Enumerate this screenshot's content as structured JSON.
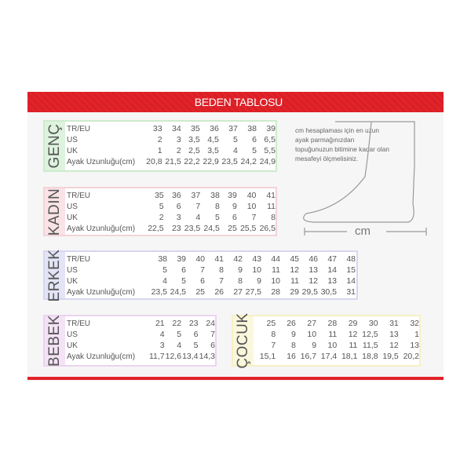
{
  "title": "BEDEN TABLOSU",
  "row_labels": [
    "TR/EU",
    "US",
    "UK",
    "Ayak Uzunluğu(cm)"
  ],
  "tables": [
    {
      "key": "genc",
      "label": "GENÇ",
      "border": "#cdebcd",
      "side": "#def3de",
      "rows": [
        [
          "33",
          "34",
          "35",
          "36",
          "37",
          "38",
          "39"
        ],
        [
          "2",
          "3",
          "3,5",
          "4,5",
          "5",
          "6",
          "6,5"
        ],
        [
          "1",
          "2",
          "2,5",
          "3,5",
          "4",
          "5",
          "5,5"
        ],
        [
          "20,8",
          "21,5",
          "22,2",
          "22,9",
          "23,5",
          "24,2",
          "24,9"
        ]
      ]
    },
    {
      "key": "kadin",
      "label": "KADIN",
      "border": "#f3d3d8",
      "side": "#f9e3e6",
      "rows": [
        [
          "35",
          "36",
          "37",
          "38",
          "39",
          "40",
          "41"
        ],
        [
          "5",
          "6",
          "7",
          "8",
          "9",
          "10",
          "11"
        ],
        [
          "2",
          "3",
          "4",
          "5",
          "6",
          "7",
          "8"
        ],
        [
          "22,5",
          "23",
          "23,5",
          "24,5",
          "25",
          "25,5",
          "26,5"
        ]
      ]
    },
    {
      "key": "erkek",
      "label": "ERKEK",
      "border": "#d6d6f1",
      "side": "#e4e4f7",
      "rows": [
        [
          "38",
          "39",
          "40",
          "41",
          "42",
          "43",
          "44",
          "45",
          "46",
          "47",
          "48"
        ],
        [
          "5",
          "6",
          "7",
          "8",
          "9",
          "10",
          "11",
          "12",
          "13",
          "14",
          "15"
        ],
        [
          "4",
          "5",
          "6",
          "7",
          "8",
          "9",
          "10",
          "11",
          "12",
          "13",
          "14"
        ],
        [
          "23,5",
          "24,5",
          "25",
          "26",
          "27",
          "27,5",
          "28",
          "29",
          "29,5",
          "30,5",
          "31"
        ]
      ]
    },
    {
      "key": "bebek",
      "label": "BEBEK",
      "border": "#ecd3ef",
      "side": "#f4e2f6",
      "rows": [
        [
          "21",
          "22",
          "23",
          "24"
        ],
        [
          "4",
          "5",
          "6",
          "7"
        ],
        [
          "3",
          "4",
          "5",
          "6"
        ],
        [
          "11,7",
          "12,6",
          "13,4",
          "14,3"
        ]
      ]
    },
    {
      "key": "cocuk",
      "label": "ÇOCUK",
      "border": "#f6f0c4",
      "side": "#fbf7dc",
      "rows": [
        [
          "25",
          "26",
          "27",
          "28",
          "29",
          "30",
          "31",
          "32"
        ],
        [
          "8",
          "9",
          "10",
          "11",
          "12",
          "12,5",
          "13",
          "1"
        ],
        [
          "7",
          "8",
          "9",
          "10",
          "11",
          "11,5",
          "12",
          "13"
        ],
        [
          "15,1",
          "16",
          "16,7",
          "17,4",
          "18,1",
          "18,8",
          "19,5",
          "20,2"
        ]
      ]
    }
  ],
  "note": "cm hesaplaması için en uzun ayak parmağınızdan topuğunuzun bitimine kadar olan mesafeyi ölçmelisiniz.",
  "measure_label": "cm",
  "accent": "#e2232a"
}
